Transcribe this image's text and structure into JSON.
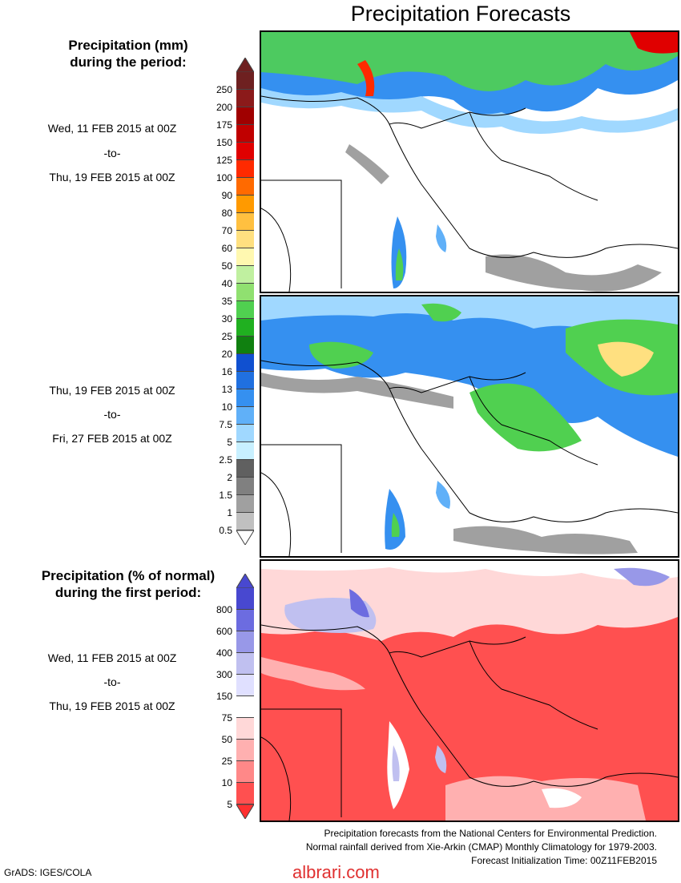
{
  "title": "Precipitation Forecasts",
  "legend_mm": {
    "title_line1": "Precipitation (mm)",
    "title_line2": "during the period:",
    "ticks": [
      "250",
      "200",
      "175",
      "150",
      "125",
      "100",
      "90",
      "80",
      "70",
      "60",
      "50",
      "40",
      "35",
      "30",
      "25",
      "20",
      "16",
      "13",
      "10",
      "7.5",
      "5",
      "2.5",
      "2",
      "1.5",
      "1",
      "0.5"
    ],
    "colors": [
      "#6e2020",
      "#8b1a1a",
      "#a00000",
      "#c00000",
      "#e00000",
      "#ff2a00",
      "#ff6a00",
      "#ff9a00",
      "#ffc040",
      "#ffe080",
      "#fff8b0",
      "#c0f0a0",
      "#90e070",
      "#50d050",
      "#20b020",
      "#108010",
      "#1050d0",
      "#2070e0",
      "#3590f0",
      "#60b0f8",
      "#a0d8ff",
      "#c8f0ff",
      "#606060",
      "#808080",
      "#a0a0a0",
      "#c0c0c0"
    ],
    "period1": {
      "from": "Wed, 11 FEB 2015 at 00Z",
      "sep": "-to-",
      "to": "Thu, 19 FEB 2015 at 00Z"
    },
    "period2": {
      "from": "Thu, 19 FEB 2015 at 00Z",
      "sep": "-to-",
      "to": "Fri, 27 FEB 2015 at 00Z"
    }
  },
  "legend_pct": {
    "title_line1": "Precipitation (% of normal)",
    "title_line2": "during the first period:",
    "ticks": [
      "800",
      "600",
      "400",
      "300",
      "150",
      "75",
      "50",
      "25",
      "10",
      "5"
    ],
    "colors": [
      "#4848d0",
      "#6c6ce0",
      "#9898e8",
      "#c0c0f0",
      "#e0e0ff",
      "#ffffff",
      "#ffd8d8",
      "#ffb0b0",
      "#ff8888",
      "#ff5050"
    ],
    "period": {
      "from": "Wed, 11 FEB 2015 at 00Z",
      "sep": "-to-",
      "to": "Thu, 19 FEB 2015 at 00Z"
    }
  },
  "credits": {
    "line1": "Precipitation forecasts from the National Centers for Environmental Prediction.",
    "line2": "Normal rainfall derived from Xie-Arkin (CMAP) Monthly Climatology for 1979-2003.",
    "line3": "Forecast Initialization Time: 00Z11FEB2015"
  },
  "grads": "GrADS: IGES/COLA",
  "watermark": "albrari.com"
}
